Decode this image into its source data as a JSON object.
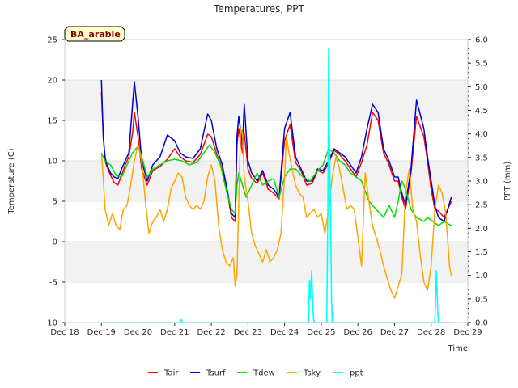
{
  "chart_data": {
    "type": "line",
    "title": "Temperatures, PPT",
    "badge": "BA_arable",
    "xlabel": "Time",
    "ylabel": "Temperature (C)",
    "y2label": "PPT (mm)",
    "x_ticks": [
      "Dec 18",
      "Dec 19",
      "Dec 20",
      "Dec 21",
      "Dec 22",
      "Dec 23",
      "Dec 24",
      "Dec 25",
      "Dec 26",
      "Dec 27",
      "Dec 28",
      "Dec 29"
    ],
    "xlim": [
      0,
      11
    ],
    "ylim": [
      -10,
      25
    ],
    "y_ticks": [
      "-10",
      "-5",
      "0",
      "5",
      "10",
      "15",
      "20",
      "25"
    ],
    "y2lim": [
      0,
      6
    ],
    "y2_ticks": [
      "0.0",
      "0.5",
      "1.0",
      "1.5",
      "2.0",
      "2.5",
      "3.0",
      "3.5",
      "4.0",
      "4.5",
      "5.0",
      "5.5",
      "6.0"
    ],
    "legend_position": "bottom-center",
    "grid": "horizontal bands",
    "series": [
      {
        "name": "Tair",
        "axis": "left",
        "color": "#ff0000",
        "x": [
          1.0,
          1.05,
          1.1,
          1.15,
          1.25,
          1.35,
          1.45,
          1.55,
          1.65,
          1.75,
          1.85,
          1.9,
          2.0,
          2.1,
          2.25,
          2.4,
          2.6,
          2.8,
          3.0,
          3.15,
          3.3,
          3.5,
          3.7,
          3.9,
          4.0,
          4.15,
          4.3,
          4.45,
          4.55,
          4.65,
          4.7,
          4.75,
          4.85,
          4.9,
          5.0,
          5.1,
          5.25,
          5.4,
          5.55,
          5.7,
          5.85,
          6.0,
          6.15,
          6.3,
          6.45,
          6.6,
          6.75,
          6.9,
          7.05,
          7.2,
          7.35,
          7.5,
          7.65,
          7.8,
          7.95,
          8.1,
          8.25,
          8.4,
          8.55,
          8.7,
          8.85,
          9.0,
          9.1,
          9.2,
          9.3,
          9.45,
          9.6,
          9.8,
          9.9,
          10.0,
          10.1,
          10.2,
          10.35,
          10.55
        ],
        "y": [
          18.5,
          13.5,
          10.0,
          9.3,
          8.2,
          7.3,
          7.0,
          8.2,
          9.5,
          10.5,
          13.5,
          16.0,
          13.0,
          9.0,
          7.0,
          8.8,
          9.3,
          10.2,
          11.5,
          10.5,
          10.0,
          9.8,
          10.8,
          13.3,
          13.0,
          10.8,
          9.0,
          5.8,
          3.0,
          2.5,
          12.0,
          14.0,
          11.0,
          13.5,
          9.0,
          7.8,
          7.2,
          8.5,
          6.5,
          6.0,
          5.3,
          12.5,
          14.5,
          9.8,
          8.8,
          7.0,
          7.2,
          8.8,
          8.5,
          9.7,
          11.3,
          10.8,
          10.0,
          9.0,
          8.0,
          9.8,
          12.0,
          16.0,
          15.0,
          11.0,
          9.5,
          7.5,
          7.5,
          5.5,
          4.0,
          8.5,
          15.5,
          13.0,
          10.0,
          6.5,
          4.0,
          3.8,
          3.0,
          5.0
        ]
      },
      {
        "name": "Tsurf",
        "axis": "left",
        "color": "#0000cc",
        "x": [
          1.0,
          1.05,
          1.1,
          1.15,
          1.25,
          1.35,
          1.45,
          1.55,
          1.65,
          1.75,
          1.85,
          1.9,
          2.0,
          2.1,
          2.25,
          2.4,
          2.6,
          2.8,
          3.0,
          3.15,
          3.3,
          3.5,
          3.7,
          3.9,
          4.0,
          4.15,
          4.3,
          4.45,
          4.55,
          4.65,
          4.7,
          4.75,
          4.85,
          4.9,
          5.0,
          5.1,
          5.25,
          5.4,
          5.55,
          5.7,
          5.85,
          6.0,
          6.15,
          6.3,
          6.45,
          6.6,
          6.75,
          6.9,
          7.05,
          7.2,
          7.35,
          7.5,
          7.65,
          7.8,
          7.95,
          8.1,
          8.25,
          8.4,
          8.55,
          8.7,
          8.85,
          9.0,
          9.1,
          9.2,
          9.3,
          9.45,
          9.6,
          9.8,
          9.9,
          10.0,
          10.1,
          10.2,
          10.35,
          10.55
        ],
        "y": [
          20.0,
          13.0,
          10.5,
          9.5,
          8.5,
          8.0,
          7.8,
          9.0,
          10.0,
          11.0,
          17.0,
          19.8,
          15.5,
          10.0,
          7.5,
          9.5,
          10.5,
          13.2,
          12.5,
          11.0,
          10.5,
          10.3,
          11.5,
          15.8,
          15.0,
          11.5,
          9.5,
          6.0,
          3.5,
          3.0,
          13.0,
          15.5,
          12.0,
          17.0,
          10.0,
          8.5,
          7.5,
          8.8,
          7.0,
          6.5,
          5.5,
          14.0,
          16.0,
          10.5,
          9.0,
          7.5,
          7.5,
          9.0,
          8.8,
          10.0,
          11.5,
          11.0,
          10.5,
          9.5,
          8.5,
          10.5,
          14.0,
          17.0,
          16.0,
          11.5,
          10.0,
          8.0,
          8.0,
          6.0,
          4.5,
          9.0,
          17.5,
          14.0,
          10.5,
          7.5,
          4.5,
          3.0,
          2.5,
          5.5
        ]
      },
      {
        "name": "Tdew",
        "axis": "left",
        "color": "#00dd00",
        "x": [
          1.0,
          1.1,
          1.25,
          1.4,
          1.55,
          1.7,
          1.85,
          2.0,
          2.1,
          2.25,
          2.4,
          2.6,
          2.8,
          3.0,
          3.2,
          3.4,
          3.6,
          3.8,
          3.95,
          4.1,
          4.25,
          4.4,
          4.55,
          4.65,
          4.7,
          4.75,
          4.85,
          4.95,
          5.1,
          5.25,
          5.4,
          5.55,
          5.7,
          5.85,
          6.0,
          6.15,
          6.3,
          6.5,
          6.7,
          6.9,
          7.05,
          7.2,
          7.35,
          7.5,
          7.65,
          7.8,
          7.95,
          8.1,
          8.3,
          8.5,
          8.7,
          8.85,
          9.0,
          9.1,
          9.2,
          9.3,
          9.45,
          9.6,
          9.8,
          9.9,
          10.05,
          10.2,
          10.35,
          10.55
        ],
        "y": [
          11.0,
          10.0,
          9.5,
          8.2,
          8.0,
          9.5,
          11.0,
          11.8,
          10.5,
          8.0,
          9.0,
          9.5,
          10.0,
          10.2,
          10.0,
          9.5,
          9.8,
          11.0,
          12.0,
          11.0,
          9.5,
          6.5,
          4.0,
          3.5,
          7.0,
          8.5,
          7.0,
          5.5,
          7.0,
          8.5,
          7.0,
          7.5,
          7.8,
          5.5,
          8.0,
          9.0,
          9.0,
          8.0,
          7.5,
          8.8,
          9.5,
          11.5,
          11.0,
          10.0,
          9.5,
          8.5,
          8.0,
          7.5,
          5.0,
          4.0,
          3.0,
          4.5,
          3.0,
          5.0,
          7.5,
          6.5,
          4.0,
          3.0,
          2.5,
          3.0,
          2.5,
          2.0,
          2.5,
          2.0
        ]
      },
      {
        "name": "Tsky",
        "axis": "left",
        "color": "#ffa500",
        "x": [
          1.0,
          1.05,
          1.1,
          1.15,
          1.2,
          1.3,
          1.4,
          1.5,
          1.6,
          1.7,
          1.8,
          1.9,
          2.0,
          2.1,
          2.2,
          2.3,
          2.4,
          2.5,
          2.6,
          2.7,
          2.8,
          2.9,
          3.0,
          3.1,
          3.2,
          3.3,
          3.4,
          3.5,
          3.6,
          3.7,
          3.8,
          3.9,
          4.0,
          4.1,
          4.2,
          4.3,
          4.4,
          4.5,
          4.6,
          4.65,
          4.7,
          4.75,
          4.8,
          4.85,
          4.9,
          5.0,
          5.1,
          5.2,
          5.3,
          5.4,
          5.5,
          5.6,
          5.7,
          5.8,
          5.9,
          6.0,
          6.05,
          6.1,
          6.2,
          6.3,
          6.4,
          6.5,
          6.6,
          6.7,
          6.8,
          6.9,
          7.0,
          7.1,
          7.2,
          7.3,
          7.4,
          7.5,
          7.6,
          7.7,
          7.8,
          7.9,
          8.0,
          8.1,
          8.2,
          8.3,
          8.4,
          8.5,
          8.6,
          8.7,
          8.8,
          8.9,
          9.0,
          9.1,
          9.2,
          9.3,
          9.4,
          9.5,
          9.6,
          9.7,
          9.8,
          9.9,
          10.0,
          10.1,
          10.2,
          10.3,
          10.4,
          10.5,
          10.55
        ],
        "y": [
          11.0,
          8.0,
          4.0,
          3.0,
          2.0,
          3.5,
          2.0,
          1.5,
          4.0,
          4.5,
          7.0,
          10.0,
          12.0,
          10.0,
          5.0,
          1.0,
          2.5,
          3.0,
          4.0,
          2.5,
          4.0,
          6.5,
          7.5,
          8.5,
          8.0,
          5.5,
          4.5,
          4.0,
          4.5,
          4.0,
          5.0,
          8.0,
          9.5,
          7.5,
          2.0,
          -1.0,
          -2.5,
          -3.0,
          -2.0,
          -5.5,
          -4.0,
          5.0,
          14.0,
          13.5,
          8.0,
          5.0,
          1.0,
          -0.5,
          -1.5,
          -2.5,
          -1.0,
          -2.5,
          -2.0,
          -1.0,
          1.0,
          8.0,
          13.0,
          11.5,
          9.0,
          7.0,
          6.0,
          5.5,
          3.0,
          3.5,
          4.0,
          3.0,
          3.5,
          1.0,
          4.0,
          8.0,
          10.5,
          9.0,
          6.5,
          4.0,
          4.5,
          4.0,
          0.5,
          -3.0,
          8.5,
          5.0,
          2.0,
          0.5,
          -1.0,
          -3.0,
          -4.5,
          -6.0,
          -7.0,
          -5.5,
          -4.0,
          6.0,
          9.0,
          4.0,
          2.5,
          -1.5,
          -5.0,
          -6.0,
          -3.0,
          4.0,
          7.0,
          6.0,
          3.5,
          -3.0,
          -4.2
        ]
      },
      {
        "name": "ppt",
        "axis": "right",
        "color": "#00ffff",
        "x": [
          1.0,
          3.15,
          3.18,
          3.21,
          3.25,
          6.65,
          6.68,
          6.7,
          6.72,
          6.74,
          6.76,
          6.78,
          6.8,
          6.82,
          6.9,
          7.15,
          7.18,
          7.2,
          7.22,
          7.24,
          7.26,
          7.28,
          7.3,
          10.1,
          10.12,
          10.14,
          10.16,
          10.18,
          10.2,
          10.55
        ],
        "y": [
          0.0,
          0.0,
          0.06,
          0.0,
          0.0,
          0.0,
          0.9,
          0.5,
          0.8,
          1.1,
          0.6,
          0.2,
          0.0,
          0.0,
          0.0,
          0.0,
          2.5,
          5.8,
          4.0,
          3.0,
          2.0,
          0.5,
          0.0,
          0.0,
          0.5,
          1.1,
          0.7,
          0.2,
          0.0,
          0.0
        ]
      }
    ]
  }
}
